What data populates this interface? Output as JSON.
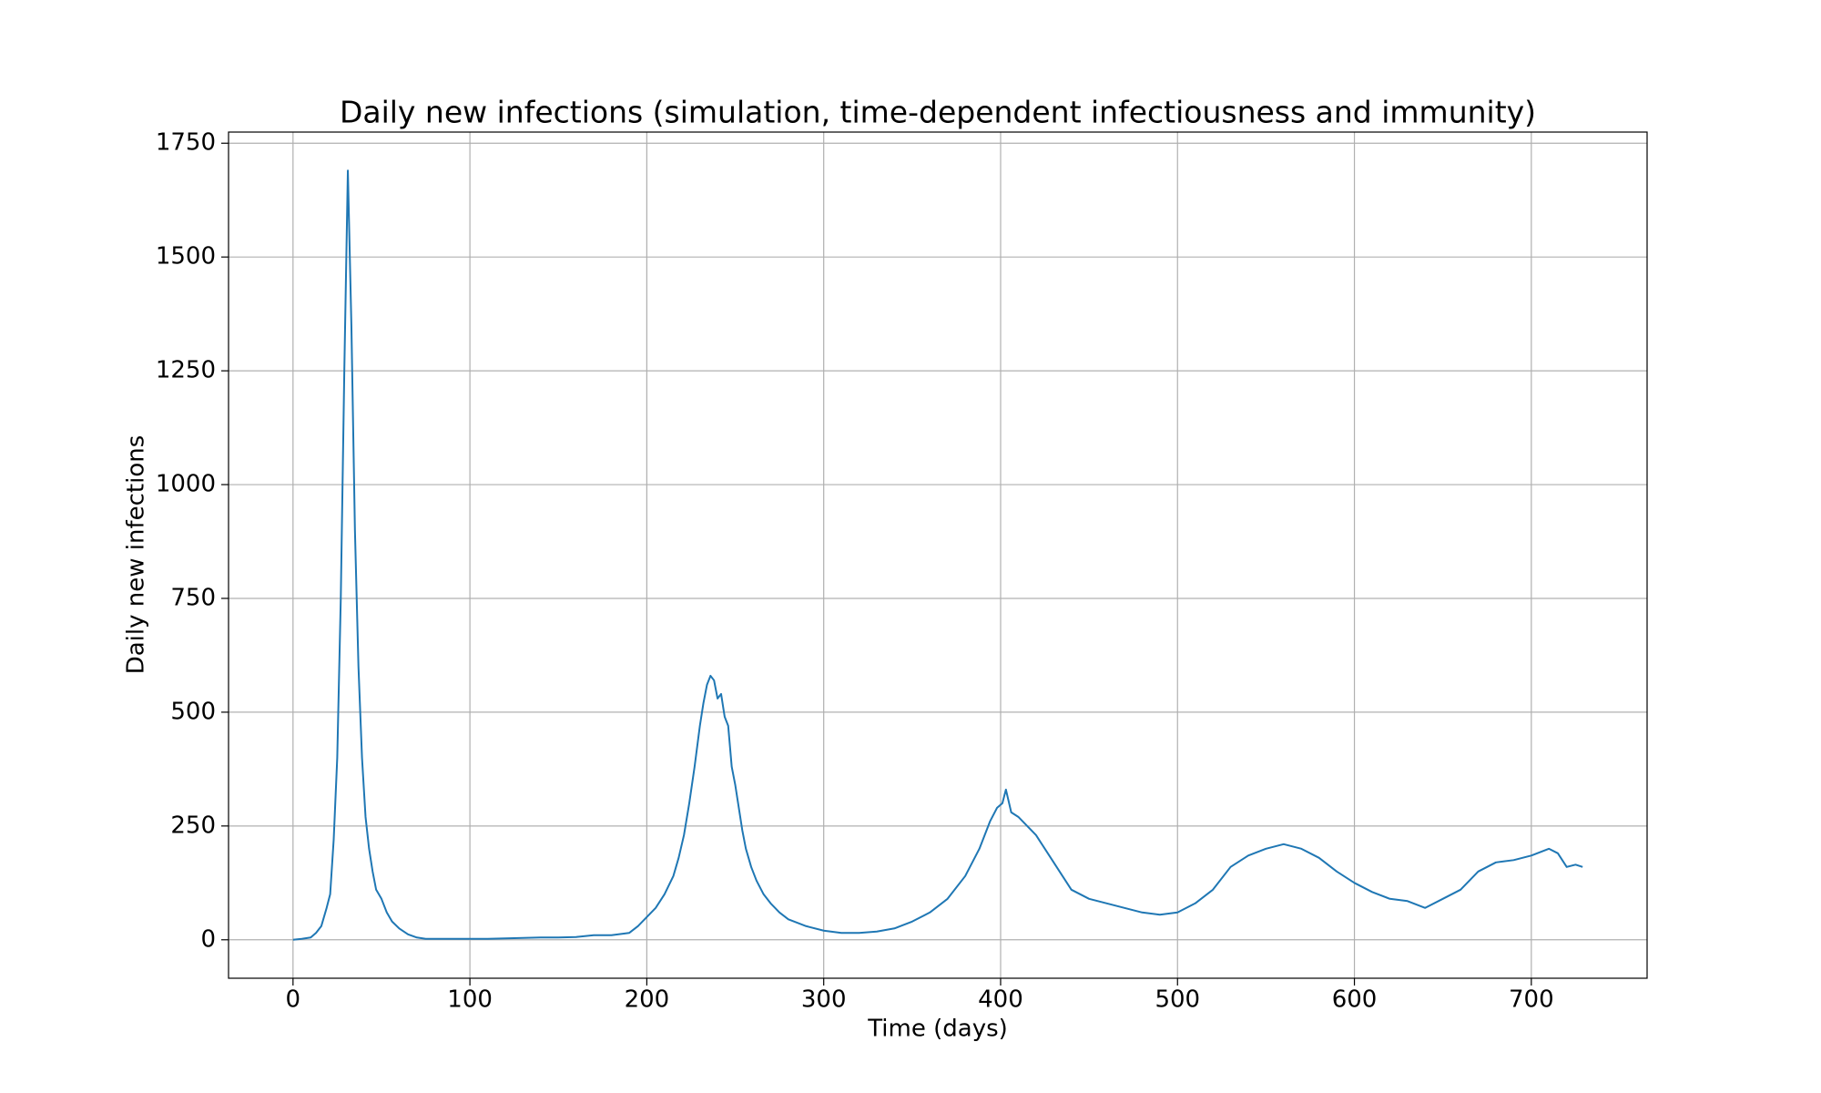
{
  "chart_data": {
    "type": "line",
    "title": "Daily new infections (simulation, time-dependent infectiousness and immunity)",
    "xlabel": "Time (days)",
    "ylabel": "Daily new infections",
    "x": [
      0,
      5,
      10,
      13,
      16,
      19,
      21,
      23,
      25,
      27,
      29,
      31,
      33,
      35,
      37,
      39,
      41,
      43,
      45,
      47,
      50,
      53,
      56,
      60,
      65,
      70,
      75,
      90,
      100,
      110,
      120,
      130,
      140,
      150,
      160,
      170,
      180,
      190,
      195,
      200,
      205,
      210,
      215,
      218,
      221,
      224,
      227,
      230,
      232,
      234,
      236,
      238,
      240,
      242,
      244,
      246,
      248,
      250,
      252,
      254,
      256,
      259,
      262,
      266,
      270,
      275,
      280,
      290,
      300,
      310,
      320,
      330,
      340,
      350,
      360,
      370,
      380,
      388,
      394,
      398,
      401,
      403,
      406,
      410,
      415,
      420,
      425,
      430,
      435,
      440,
      450,
      460,
      470,
      480,
      490,
      500,
      510,
      520,
      530,
      540,
      550,
      560,
      570,
      580,
      590,
      600,
      610,
      620,
      630,
      640,
      650,
      660,
      670,
      680,
      690,
      700,
      710,
      715,
      720,
      725,
      729
    ],
    "values": [
      0,
      2,
      5,
      15,
      30,
      70,
      100,
      220,
      400,
      750,
      1250,
      1690,
      1350,
      900,
      600,
      400,
      270,
      200,
      150,
      110,
      90,
      60,
      40,
      25,
      12,
      5,
      2,
      2,
      2,
      2,
      3,
      4,
      5,
      5,
      6,
      10,
      10,
      15,
      30,
      50,
      70,
      100,
      140,
      180,
      230,
      300,
      380,
      470,
      520,
      560,
      580,
      570,
      530,
      540,
      490,
      470,
      380,
      340,
      290,
      240,
      200,
      160,
      130,
      100,
      80,
      60,
      45,
      30,
      20,
      15,
      15,
      18,
      25,
      40,
      60,
      90,
      140,
      200,
      260,
      290,
      300,
      330,
      280,
      270,
      250,
      230,
      200,
      170,
      140,
      110,
      90,
      80,
      70,
      60,
      55,
      60,
      80,
      110,
      160,
      185,
      200,
      210,
      200,
      180,
      150,
      125,
      105,
      90,
      85,
      70,
      90,
      110,
      150,
      170,
      175,
      185,
      200,
      190,
      160,
      165,
      160
    ],
    "color": "#1f77b4",
    "xlim": [
      -36.45,
      765.45
    ],
    "xticks": [
      0,
      100,
      200,
      300,
      400,
      500,
      600,
      700
    ],
    "ylim": [
      -84.5,
      1774.5
    ],
    "yticks": [
      0,
      250,
      500,
      750,
      1000,
      1250,
      1500,
      1750
    ],
    "grid": true
  }
}
